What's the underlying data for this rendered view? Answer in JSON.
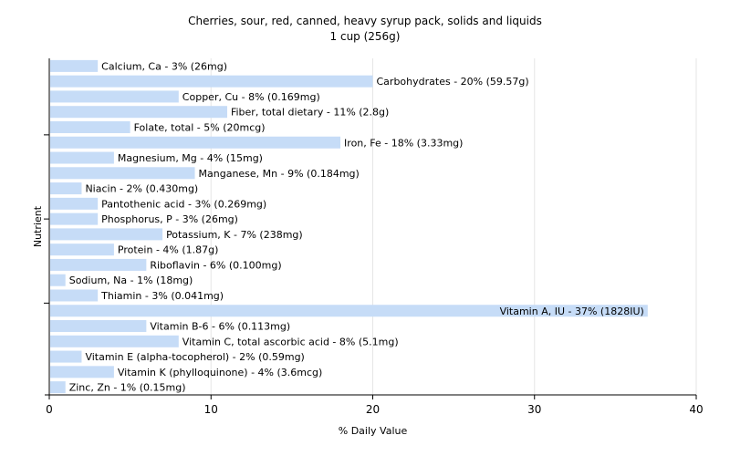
{
  "chart_data": {
    "type": "bar",
    "orientation": "horizontal",
    "title": "Cherries, sour, red, canned, heavy syrup pack, solids and liquids",
    "subtitle": "1 cup (256g)",
    "xlabel": "% Daily Value",
    "ylabel": "Nutrient",
    "xlim": [
      0,
      40
    ],
    "xticks": [
      "0",
      "10",
      "20",
      "30",
      "40"
    ],
    "grid": true,
    "bar_color": "#c6dcf7",
    "categories": [
      "Calcium, Ca",
      "Carbohydrates",
      "Copper, Cu",
      "Fiber, total dietary",
      "Folate, total",
      "Iron, Fe",
      "Magnesium, Mg",
      "Manganese, Mn",
      "Niacin",
      "Pantothenic acid",
      "Phosphorus, P",
      "Potassium, K",
      "Protein",
      "Riboflavin",
      "Sodium, Na",
      "Thiamin",
      "Vitamin A, IU",
      "Vitamin B-6",
      "Vitamin C, total ascorbic acid",
      "Vitamin E (alpha-tocopherol)",
      "Vitamin K (phylloquinone)",
      "Zinc, Zn"
    ],
    "values": [
      3,
      20,
      8,
      11,
      5,
      18,
      4,
      9,
      2,
      3,
      3,
      7,
      4,
      6,
      1,
      3,
      37,
      6,
      8,
      2,
      4,
      1
    ],
    "data_labels": [
      "Calcium, Ca - 3% (26mg)",
      "Carbohydrates - 20% (59.57g)",
      "Copper, Cu - 8% (0.169mg)",
      "Fiber, total dietary - 11% (2.8g)",
      "Folate, total - 5% (20mcg)",
      "Iron, Fe - 18% (3.33mg)",
      "Magnesium, Mg - 4% (15mg)",
      "Manganese, Mn - 9% (0.184mg)",
      "Niacin - 2% (0.430mg)",
      "Pantothenic acid - 3% (0.269mg)",
      "Phosphorus, P - 3% (26mg)",
      "Potassium, K - 7% (238mg)",
      "Protein - 4% (1.87g)",
      "Riboflavin - 6% (0.100mg)",
      "Sodium, Na - 1% (18mg)",
      "Thiamin - 3% (0.041mg)",
      "Vitamin A, IU - 37% (1828IU)",
      "Vitamin B-6 - 6% (0.113mg)",
      "Vitamin C, total ascorbic acid - 8% (5.1mg)",
      "Vitamin E (alpha-tocopherol) - 2% (0.59mg)",
      "Vitamin K (phylloquinone) - 4% (3.6mcg)",
      "Zinc, Zn - 1% (0.15mg)"
    ]
  }
}
